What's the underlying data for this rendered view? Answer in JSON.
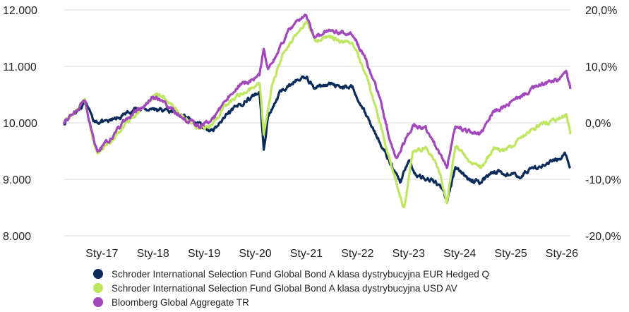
{
  "chart_data": {
    "type": "line",
    "title": "",
    "xlabel": "",
    "ylabel": "",
    "y_left": {
      "ylim": [
        8000,
        12000
      ],
      "ticks": [
        "12.000",
        "11.000",
        "10.000",
        "9.000",
        "8.000"
      ]
    },
    "y_right": {
      "ylim": [
        -20,
        20
      ],
      "ticks": [
        "20,0%",
        "10,0%",
        "0,0%",
        "-10,0%",
        "-20,0%"
      ]
    },
    "x_range": [
      "2016-04",
      "2026-03"
    ],
    "x_ticks": [
      {
        "date": "2017-01",
        "label": "Sty-17"
      },
      {
        "date": "2018-01",
        "label": "Sty-18"
      },
      {
        "date": "2019-01",
        "label": "Sty-19"
      },
      {
        "date": "2020-01",
        "label": "Sty-20"
      },
      {
        "date": "2021-01",
        "label": "Sty-21"
      },
      {
        "date": "2022-01",
        "label": "Sty-22"
      },
      {
        "date": "2023-01",
        "label": "Sty-23"
      },
      {
        "date": "2024-01",
        "label": "Sty-24"
      },
      {
        "date": "2025-01",
        "label": "Sty-25"
      },
      {
        "date": "2026-01",
        "label": "Sty-26"
      }
    ],
    "grid": true,
    "legend_position": "bottom",
    "series": [
      {
        "name": "Schroder International Selection Fund Global Bond A klasa dystrybucyjna EUR Hedged Q",
        "color": "#0b2c5a",
        "points": [
          [
            "2016-04",
            10000
          ],
          [
            "2016-06",
            10150
          ],
          [
            "2016-09",
            10350
          ],
          [
            "2016-11",
            10050
          ],
          [
            "2017-02",
            10000
          ],
          [
            "2017-05",
            10100
          ],
          [
            "2017-08",
            10200
          ],
          [
            "2017-10",
            10250
          ],
          [
            "2018-01",
            10250
          ],
          [
            "2018-05",
            10200
          ],
          [
            "2018-09",
            10100
          ],
          [
            "2018-12",
            9950
          ],
          [
            "2019-03",
            9850
          ],
          [
            "2019-06",
            10100
          ],
          [
            "2019-09",
            10300
          ],
          [
            "2019-12",
            10450
          ],
          [
            "2020-02",
            10550
          ],
          [
            "2020-03",
            9550
          ],
          [
            "2020-04",
            10100
          ],
          [
            "2020-07",
            10550
          ],
          [
            "2020-10",
            10720
          ],
          [
            "2021-01",
            10820
          ],
          [
            "2021-03",
            10600
          ],
          [
            "2021-06",
            10700
          ],
          [
            "2021-09",
            10650
          ],
          [
            "2021-12",
            10620
          ],
          [
            "2022-03",
            10150
          ],
          [
            "2022-06",
            9700
          ],
          [
            "2022-09",
            9250
          ],
          [
            "2022-11",
            8950
          ],
          [
            "2023-01",
            9350
          ],
          [
            "2023-03",
            9050
          ],
          [
            "2023-06",
            9000
          ],
          [
            "2023-09",
            8850
          ],
          [
            "2023-10",
            8600
          ],
          [
            "2023-12",
            9200
          ],
          [
            "2024-03",
            9000
          ],
          [
            "2024-06",
            8950
          ],
          [
            "2024-09",
            9150
          ],
          [
            "2024-12",
            9100
          ],
          [
            "2025-03",
            9050
          ],
          [
            "2025-06",
            9200
          ],
          [
            "2025-09",
            9250
          ],
          [
            "2025-12",
            9350
          ],
          [
            "2026-02",
            9450
          ],
          [
            "2026-03",
            9200
          ]
        ]
      },
      {
        "name": "Schroder International Selection Fund Global Bond A klasa dystrybucyjna USD AV",
        "color": "#bfe660",
        "points": [
          [
            "2016-04",
            10000
          ],
          [
            "2016-06",
            10150
          ],
          [
            "2016-09",
            10400
          ],
          [
            "2016-11",
            9700
          ],
          [
            "2016-12",
            9450
          ],
          [
            "2017-03",
            9650
          ],
          [
            "2017-06",
            9950
          ],
          [
            "2017-09",
            10150
          ],
          [
            "2017-11",
            10300
          ],
          [
            "2018-01",
            10450
          ],
          [
            "2018-03",
            10500
          ],
          [
            "2018-06",
            10250
          ],
          [
            "2018-09",
            10050
          ],
          [
            "2018-12",
            9900
          ],
          [
            "2019-03",
            9950
          ],
          [
            "2019-06",
            10300
          ],
          [
            "2019-09",
            10500
          ],
          [
            "2019-12",
            10600
          ],
          [
            "2020-02",
            10750
          ],
          [
            "2020-03",
            9800
          ],
          [
            "2020-05",
            10700
          ],
          [
            "2020-08",
            11300
          ],
          [
            "2020-11",
            11600
          ],
          [
            "2021-01",
            11800
          ],
          [
            "2021-03",
            11450
          ],
          [
            "2021-06",
            11550
          ],
          [
            "2021-09",
            11450
          ],
          [
            "2021-12",
            11400
          ],
          [
            "2022-03",
            10850
          ],
          [
            "2022-06",
            10100
          ],
          [
            "2022-09",
            9250
          ],
          [
            "2022-11",
            8700
          ],
          [
            "2022-12",
            8500
          ],
          [
            "2023-02",
            9500
          ],
          [
            "2023-05",
            9550
          ],
          [
            "2023-08",
            9200
          ],
          [
            "2023-10",
            8600
          ],
          [
            "2023-12",
            9600
          ],
          [
            "2024-03",
            9350
          ],
          [
            "2024-06",
            9200
          ],
          [
            "2024-09",
            9550
          ],
          [
            "2024-12",
            9500
          ],
          [
            "2025-03",
            9700
          ],
          [
            "2025-06",
            9900
          ],
          [
            "2025-09",
            10000
          ],
          [
            "2025-12",
            10050
          ],
          [
            "2026-02",
            10150
          ],
          [
            "2026-03",
            9800
          ]
        ]
      },
      {
        "name": "Bloomberg Global Aggregate TR",
        "color": "#a347bd",
        "points": [
          [
            "2016-04",
            10000
          ],
          [
            "2016-06",
            10150
          ],
          [
            "2016-09",
            10400
          ],
          [
            "2016-11",
            9750
          ],
          [
            "2016-12",
            9500
          ],
          [
            "2017-03",
            9700
          ],
          [
            "2017-06",
            10000
          ],
          [
            "2017-09",
            10200
          ],
          [
            "2017-11",
            10300
          ],
          [
            "2018-01",
            10450
          ],
          [
            "2018-03",
            10400
          ],
          [
            "2018-06",
            10200
          ],
          [
            "2018-09",
            10050
          ],
          [
            "2018-12",
            9950
          ],
          [
            "2019-03",
            10050
          ],
          [
            "2019-06",
            10400
          ],
          [
            "2019-09",
            10650
          ],
          [
            "2019-12",
            10750
          ],
          [
            "2020-02",
            10850
          ],
          [
            "2020-03",
            11350
          ],
          [
            "2020-04",
            10950
          ],
          [
            "2020-06",
            11200
          ],
          [
            "2020-09",
            11650
          ],
          [
            "2020-12",
            11850
          ],
          [
            "2021-01",
            11900
          ],
          [
            "2021-03",
            11500
          ],
          [
            "2021-06",
            11650
          ],
          [
            "2021-09",
            11600
          ],
          [
            "2021-12",
            11550
          ],
          [
            "2022-03",
            11100
          ],
          [
            "2022-06",
            10500
          ],
          [
            "2022-09",
            9600
          ],
          [
            "2022-10",
            9350
          ],
          [
            "2022-12",
            9650
          ],
          [
            "2023-02",
            9950
          ],
          [
            "2023-05",
            9900
          ],
          [
            "2023-08",
            9500
          ],
          [
            "2023-10",
            9200
          ],
          [
            "2023-12",
            9950
          ],
          [
            "2024-03",
            9850
          ],
          [
            "2024-06",
            9800
          ],
          [
            "2024-09",
            10200
          ],
          [
            "2024-12",
            10300
          ],
          [
            "2025-03",
            10450
          ],
          [
            "2025-06",
            10600
          ],
          [
            "2025-09",
            10700
          ],
          [
            "2025-12",
            10750
          ],
          [
            "2026-02",
            10900
          ],
          [
            "2026-03",
            10600
          ]
        ]
      }
    ]
  }
}
